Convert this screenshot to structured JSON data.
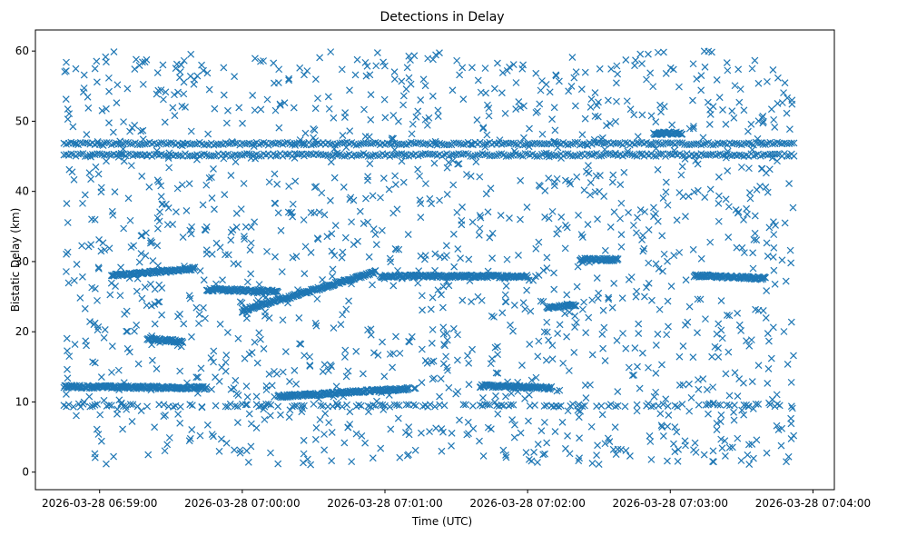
{
  "chart_data": {
    "type": "scatter",
    "title": "Detections in Delay",
    "xlabel": "Time (UTC)",
    "ylabel": "Bistatic Delay (km)",
    "marker": "x",
    "color": "#1f77b4",
    "grid": false,
    "legend": "none",
    "xlim": [
      "2026-03-28 06:58:33",
      "2026-03-28 07:04:09"
    ],
    "ylim": [
      -2.5,
      63
    ],
    "x_ticks": [
      "2026-03-28 06:59:00",
      "2026-03-28 07:00:00",
      "2026-03-28 07:01:00",
      "2026-03-28 07:02:00",
      "2026-03-28 07:03:00",
      "2026-03-28 07:04:00"
    ],
    "y_ticks": [
      "0",
      "10",
      "20",
      "30",
      "40",
      "50",
      "60"
    ],
    "x_start": "2026-03-28 06:58:45",
    "x_end": "2026-03-28 07:03:52",
    "series": [
      {
        "description": "persistent detection band",
        "from": "2026-03-28 06:58:45",
        "to": "2026-03-28 07:03:52",
        "y_start": 46.8,
        "y_end": 46.8
      },
      {
        "description": "detection track",
        "from": "2026-03-28 06:59:45",
        "to": "2026-03-28 07:00:15",
        "y_start": 26.0,
        "y_end": 25.8
      },
      {
        "description": "detection track",
        "from": "2026-03-28 07:00:00",
        "to": "2026-03-28 07:00:56",
        "y_start": 23.0,
        "y_end": 28.5
      },
      {
        "description": "detection track",
        "from": "2026-03-28 07:00:58",
        "to": "2026-03-28 07:02:00",
        "y_start": 27.9,
        "y_end": 27.9
      },
      {
        "description": "detection track",
        "from": "2026-03-28 07:00:15",
        "to": "2026-03-28 07:01:10",
        "y_start": 10.8,
        "y_end": 11.9
      },
      {
        "description": "detection track",
        "from": "2026-03-28 07:01:40",
        "to": "2026-03-28 07:02:10",
        "y_start": 12.3,
        "y_end": 12.0
      },
      {
        "description": "detection track",
        "from": "2026-03-28 07:02:08",
        "to": "2026-03-28 07:02:20",
        "y_start": 23.4,
        "y_end": 23.8
      },
      {
        "description": "detection track",
        "from": "2026-03-28 07:02:22",
        "to": "2026-03-28 07:02:38",
        "y_start": 30.3,
        "y_end": 30.3
      },
      {
        "description": "detection track",
        "from": "2026-03-28 07:03:10",
        "to": "2026-03-28 07:03:40",
        "y_start": 28.0,
        "y_end": 27.6
      },
      {
        "description": "detection track",
        "from": "2026-03-28 07:02:53",
        "to": "2026-03-28 07:03:05",
        "y_start": 48.3,
        "y_end": 48.3
      },
      {
        "description": "detection track",
        "from": "2026-03-28 06:58:45",
        "to": "2026-03-28 07:03:52",
        "y_start": 9.5,
        "y_end": 9.5
      },
      {
        "description": "detection track",
        "from": "2026-03-28 06:58:45",
        "to": "2026-03-28 06:59:45",
        "y_start": 12.2,
        "y_end": 12.0
      },
      {
        "description": "detection track",
        "from": "2026-03-28 06:59:05",
        "to": "2026-03-28 06:59:40",
        "y_start": 28.0,
        "y_end": 29.0
      },
      {
        "description": "detection track",
        "from": "2026-03-28 06:59:20",
        "to": "2026-03-28 06:59:35",
        "y_start": 19.0,
        "y_end": 18.6
      },
      {
        "description": "detection track",
        "from": "2026-03-28 06:58:45",
        "to": "2026-03-28 07:03:52",
        "y_start": 45.2,
        "y_end": 45.2
      },
      {
        "description": "scattered clutter detections",
        "from": "2026-03-28 06:58:45",
        "to": "2026-03-28 07:03:52",
        "y_range": [
          1,
          60
        ]
      }
    ]
  }
}
